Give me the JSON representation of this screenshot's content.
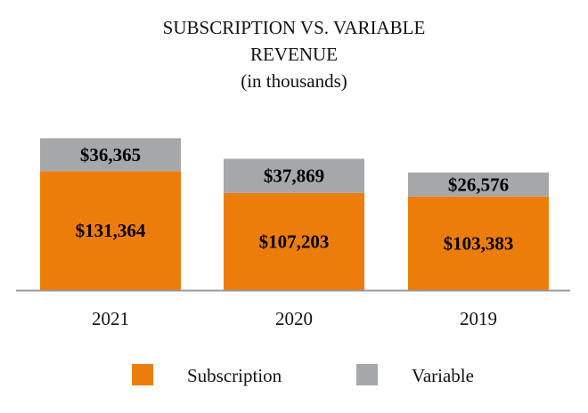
{
  "chart_data": {
    "type": "bar",
    "stacked": true,
    "title_lines": [
      "SUBSCRIPTION VS. VARIABLE",
      "REVENUE",
      "(in thousands)"
    ],
    "categories": [
      "2021",
      "2020",
      "2019"
    ],
    "series": [
      {
        "name": "Subscription",
        "color": "#ED7D0B",
        "values": [
          131364,
          107203,
          103383
        ],
        "labels": [
          "$131,364",
          "$107,203",
          "$103,383"
        ]
      },
      {
        "name": "Variable",
        "color": "#A5A7A9",
        "values": [
          36365,
          37869,
          26576
        ],
        "labels": [
          "$36,365",
          "$37,869",
          "$26,576"
        ]
      }
    ],
    "xlabel": "",
    "ylabel": "",
    "ylim": [
      0,
      170000
    ],
    "grid": false,
    "legend_position": "bottom",
    "axis_color": "#999999"
  }
}
